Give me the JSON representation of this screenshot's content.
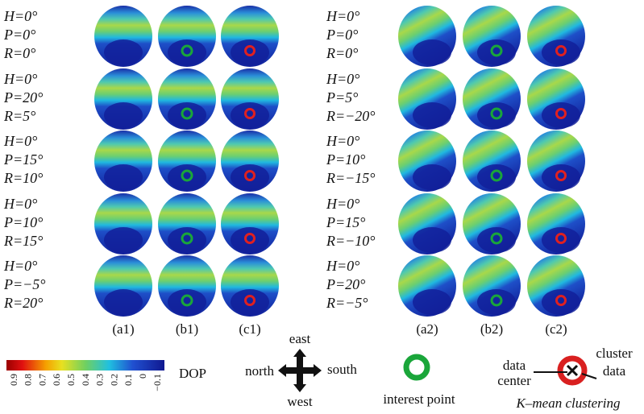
{
  "left_rows": [
    {
      "h": "H=0°",
      "p": "P=0°",
      "r": "R=0°"
    },
    {
      "h": "H=0°",
      "p": "P=20°",
      "r": "R=5°"
    },
    {
      "h": "H=0°",
      "p": "P=15°",
      "r": "R=10°"
    },
    {
      "h": "H=0°",
      "p": "P=10°",
      "r": "R=15°"
    },
    {
      "h": "H=0°",
      "p": "P=−5°",
      "r": "R=20°"
    }
  ],
  "right_rows": [
    {
      "h": "H=0°",
      "p": "P=0°",
      "r": "R=0°"
    },
    {
      "h": "H=0°",
      "p": "P=5°",
      "r": "R=−20°"
    },
    {
      "h": "H=0°",
      "p": "P=10°",
      "r": "R=−15°"
    },
    {
      "h": "H=0°",
      "p": "P=15°",
      "r": "R=−10°"
    },
    {
      "h": "H=0°",
      "p": "P=20°",
      "r": "R=−5°"
    }
  ],
  "left_columns": [
    "(a1)",
    "(b1)",
    "(c1)"
  ],
  "right_columns": [
    "(a2)",
    "(b2)",
    "(c2)"
  ],
  "colorbar": {
    "ticks": [
      "0.9",
      "0.8",
      "0.7",
      "0.6",
      "0.5",
      "0.4",
      "0.3",
      "0.2",
      "0.1",
      "0",
      "−0.1"
    ],
    "label": "DOP"
  },
  "compass": {
    "east": "east",
    "west": "west",
    "north": "north",
    "south": "south"
  },
  "legend": {
    "interest": "interest point",
    "data": "data",
    "center": "center",
    "cluster": "cluster",
    "cluster_data": "data",
    "method": "K–mean clustering"
  }
}
